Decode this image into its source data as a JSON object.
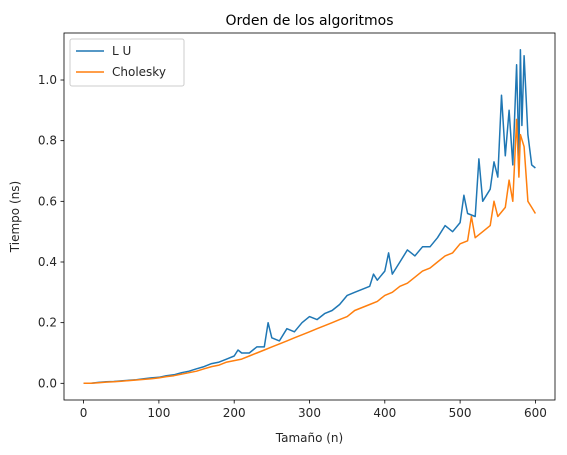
{
  "chart_data": {
    "type": "line",
    "title": "Orden de los algoritmos",
    "xlabel": "Tamaño (n)",
    "ylabel": "Tiempo (ns)",
    "xlim": [
      -26,
      626
    ],
    "ylim": [
      -0.055,
      1.155
    ],
    "x_ticks": [
      0,
      100,
      200,
      300,
      400,
      500,
      600
    ],
    "y_ticks": [
      0.0,
      0.2,
      0.4,
      0.6,
      0.8,
      1.0
    ],
    "x_tick_labels": [
      "0",
      "100",
      "200",
      "300",
      "400",
      "500",
      "600"
    ],
    "y_tick_labels": [
      "0.0",
      "0.2",
      "0.4",
      "0.6",
      "0.8",
      "1.0"
    ],
    "grid": false,
    "legend": "top-left",
    "series": [
      {
        "name": "L U",
        "color": "#1f77b4",
        "x": [
          0,
          10,
          20,
          30,
          40,
          50,
          60,
          70,
          80,
          90,
          100,
          110,
          120,
          130,
          140,
          150,
          160,
          170,
          180,
          190,
          200,
          205,
          210,
          220,
          230,
          240,
          245,
          250,
          260,
          270,
          280,
          290,
          300,
          310,
          320,
          330,
          340,
          350,
          360,
          370,
          380,
          385,
          390,
          400,
          405,
          410,
          420,
          430,
          440,
          450,
          460,
          470,
          480,
          490,
          500,
          505,
          510,
          520,
          525,
          530,
          540,
          545,
          550,
          555,
          560,
          565,
          570,
          575,
          578,
          580,
          582,
          585,
          590,
          595,
          600
        ],
        "values": [
          0.0,
          0.0,
          0.003,
          0.005,
          0.006,
          0.008,
          0.01,
          0.012,
          0.015,
          0.018,
          0.02,
          0.025,
          0.028,
          0.035,
          0.04,
          0.048,
          0.055,
          0.065,
          0.07,
          0.08,
          0.09,
          0.11,
          0.1,
          0.1,
          0.12,
          0.12,
          0.2,
          0.15,
          0.14,
          0.18,
          0.17,
          0.2,
          0.22,
          0.21,
          0.23,
          0.24,
          0.26,
          0.29,
          0.3,
          0.31,
          0.32,
          0.36,
          0.34,
          0.37,
          0.43,
          0.36,
          0.4,
          0.44,
          0.42,
          0.45,
          0.45,
          0.48,
          0.52,
          0.5,
          0.53,
          0.62,
          0.56,
          0.55,
          0.74,
          0.6,
          0.64,
          0.73,
          0.68,
          0.95,
          0.75,
          0.9,
          0.72,
          1.05,
          0.75,
          1.1,
          0.85,
          1.08,
          0.82,
          0.72,
          0.71
        ]
      },
      {
        "name": "Cholesky",
        "color": "#ff7f0e",
        "x": [
          0,
          10,
          20,
          30,
          40,
          50,
          60,
          70,
          80,
          90,
          100,
          110,
          120,
          130,
          140,
          150,
          160,
          170,
          180,
          190,
          200,
          210,
          220,
          230,
          240,
          250,
          260,
          270,
          280,
          290,
          300,
          310,
          320,
          330,
          340,
          350,
          360,
          370,
          380,
          390,
          400,
          410,
          420,
          430,
          440,
          450,
          460,
          470,
          480,
          490,
          500,
          510,
          515,
          520,
          530,
          540,
          545,
          550,
          560,
          565,
          570,
          575,
          578,
          580,
          585,
          590,
          595,
          600
        ],
        "values": [
          0.0,
          0.0,
          0.002,
          0.004,
          0.005,
          0.007,
          0.009,
          0.011,
          0.013,
          0.015,
          0.018,
          0.022,
          0.025,
          0.03,
          0.035,
          0.04,
          0.048,
          0.055,
          0.06,
          0.07,
          0.075,
          0.08,
          0.09,
          0.1,
          0.11,
          0.12,
          0.13,
          0.14,
          0.15,
          0.16,
          0.17,
          0.18,
          0.19,
          0.2,
          0.21,
          0.22,
          0.24,
          0.25,
          0.26,
          0.27,
          0.29,
          0.3,
          0.32,
          0.33,
          0.35,
          0.37,
          0.38,
          0.4,
          0.42,
          0.43,
          0.46,
          0.47,
          0.55,
          0.48,
          0.5,
          0.52,
          0.6,
          0.55,
          0.58,
          0.67,
          0.6,
          0.87,
          0.68,
          0.82,
          0.78,
          0.6,
          0.58,
          0.56
        ]
      }
    ]
  }
}
